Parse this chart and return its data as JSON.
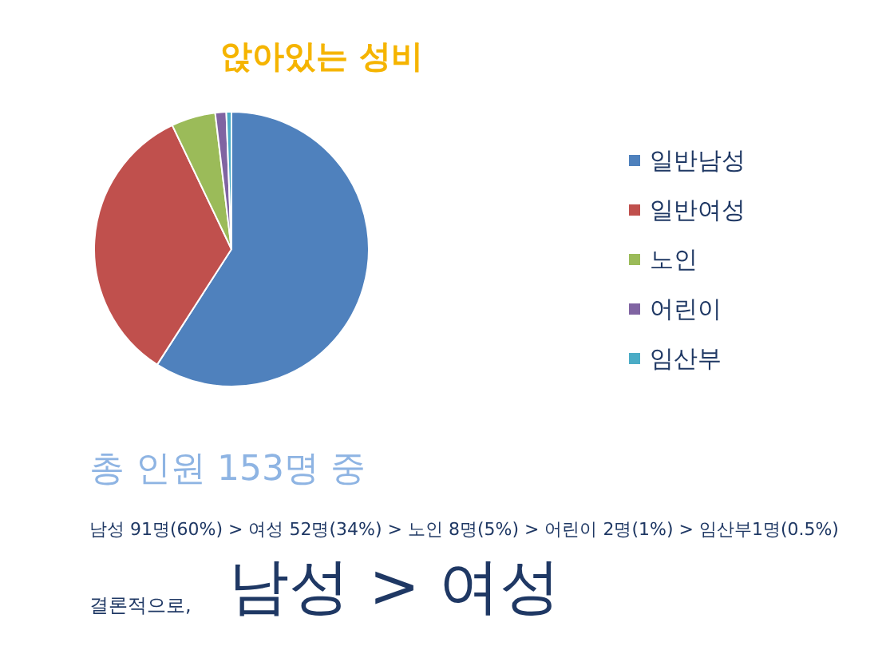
{
  "chart_data": {
    "type": "pie",
    "title": "앉아있는 성비",
    "categories": [
      "일반남성",
      "일반여성",
      "노인",
      "어린이",
      "임산부"
    ],
    "values": [
      59.1,
      33.8,
      5.2,
      1.3,
      0.6
    ],
    "colors": [
      "#4f81bd",
      "#c0504d",
      "#9bbb59",
      "#8064a2",
      "#4bacc6"
    ],
    "legend": "right",
    "annotations": [
      "총 인원 153명 중",
      "남성 91명(60%) > 여성 52명(34%) > 노인 8명(5%) > 어린이 2명(1%) > 임산부1명(0.5%)",
      "결론적으로,",
      "남성 > 여성"
    ]
  }
}
